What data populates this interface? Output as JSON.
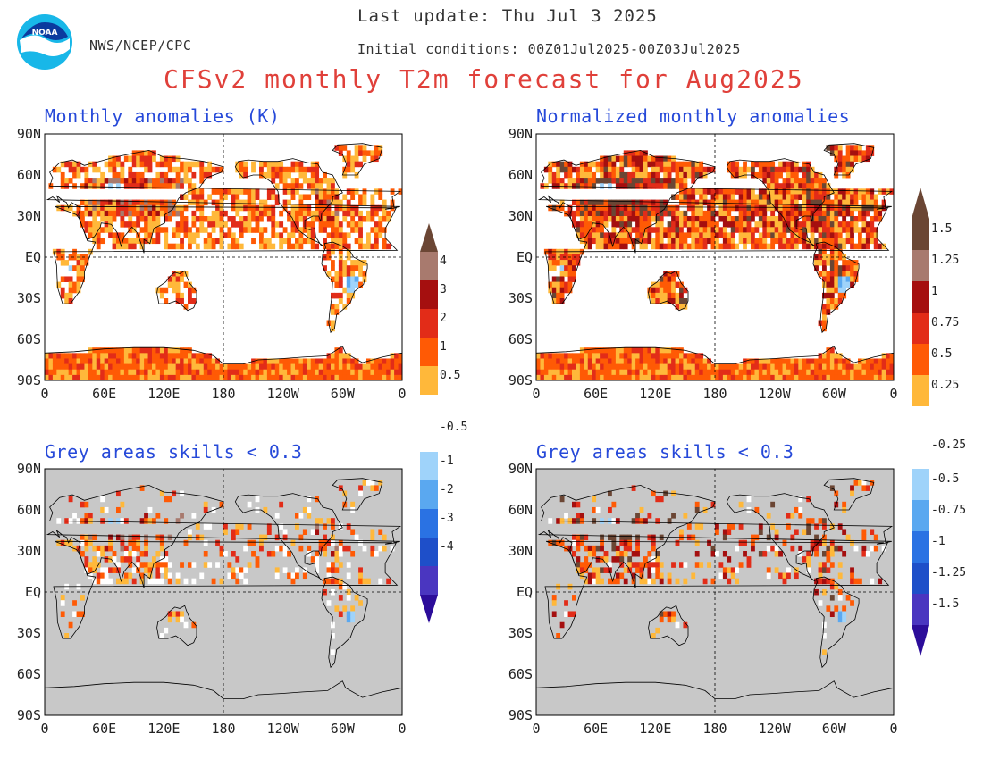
{
  "header": {
    "agency": "NWS/NCEP/CPC",
    "last_update": "Last update: Thu Jul 3 2025",
    "initial_conditions": "Initial conditions: 00Z01Jul2025-00Z03Jul2025",
    "title": "CFSv2 monthly T2m forecast for Aug2025",
    "logo_text": "NOAA"
  },
  "panels": {
    "top_left_title": "Monthly anomalies (K)",
    "top_right_title": "Normalized monthly anomalies",
    "bottom_left_title": "Grey areas skills < 0.3",
    "bottom_right_title": "Grey areas skills < 0.3"
  },
  "axes": {
    "lat_labels": [
      "90N",
      "60N",
      "30N",
      "EQ",
      "30S",
      "60S",
      "90S"
    ],
    "lon_labels": [
      "0",
      "60E",
      "120E",
      "180",
      "120W",
      "60W",
      "0"
    ]
  },
  "colorbar_left": {
    "labels": [
      "4",
      "3",
      "2",
      "1",
      "0.5",
      "-0.5",
      "-1",
      "-2",
      "-3",
      "-4"
    ]
  },
  "colorbar_right": {
    "labels": [
      "1.5",
      "1.25",
      "1",
      "0.75",
      "0.5",
      "0.25",
      "-0.25",
      "-0.5",
      "-0.75",
      "-1",
      "-1.25",
      "-1.5"
    ]
  },
  "colors": {
    "c_pos_max": "#6b4634",
    "c_pos_5": "#a87a6e",
    "c_pos_4": "#a50f0f",
    "c_pos_3": "#e22c18",
    "c_pos_2": "#ff5a05",
    "c_pos_1": "#ffb83a",
    "c_neutral": "#ffffff",
    "c_neg_1": "#9fd3fa",
    "c_neg_2": "#5aa8f0",
    "c_neg_3": "#2a72e3",
    "c_neg_4": "#1e4fc9",
    "c_neg_5": "#4a36c0",
    "c_neg_max": "#2c0d9a",
    "grey_mask": "#c8c8c8"
  }
}
